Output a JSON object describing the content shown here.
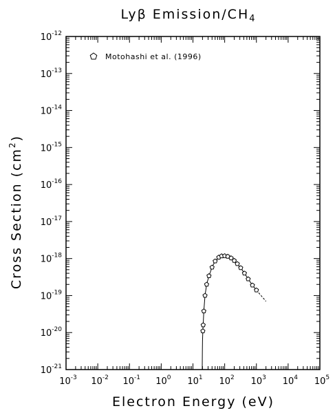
{
  "chart_data": {
    "type": "scatter",
    "title_main": "Lyβ Emission/CH",
    "title_sub": "4",
    "xlabel": "Electron Energy (eV)",
    "ylabel_main": "Cross Section (cm",
    "ylabel_sup": "2",
    "ylabel_end": ")",
    "x_scale": "log",
    "y_scale": "log",
    "xlim": [
      0.001,
      100000
    ],
    "ylim": [
      1e-21,
      1e-12
    ],
    "x_ticks": [
      {
        "base": "10",
        "exp": "-3"
      },
      {
        "base": "10",
        "exp": "-2"
      },
      {
        "base": "10",
        "exp": "-1"
      },
      {
        "base": "10",
        "exp": "0"
      },
      {
        "base": "10",
        "exp": "1"
      },
      {
        "base": "10",
        "exp": "2"
      },
      {
        "base": "10",
        "exp": "3"
      },
      {
        "base": "10",
        "exp": "4"
      },
      {
        "base": "10",
        "exp": "5"
      }
    ],
    "y_ticks": [
      {
        "base": "10",
        "exp": "-21"
      },
      {
        "base": "10",
        "exp": "-20"
      },
      {
        "base": "10",
        "exp": "-19"
      },
      {
        "base": "10",
        "exp": "-18"
      },
      {
        "base": "10",
        "exp": "-17"
      },
      {
        "base": "10",
        "exp": "-16"
      },
      {
        "base": "10",
        "exp": "-15"
      },
      {
        "base": "10",
        "exp": "-14"
      },
      {
        "base": "10",
        "exp": "-13"
      },
      {
        "base": "10",
        "exp": "-12"
      }
    ],
    "legend_placement": "top-left",
    "grid": false,
    "series": [
      {
        "name": "Motohashi et al. (1996)",
        "marker": "pentagon-open",
        "points": [
          [
            20.5,
            1.1e-20
          ],
          [
            21,
            1.6e-20
          ],
          [
            22,
            3.8e-20
          ],
          [
            24,
            1e-19
          ],
          [
            27,
            2e-19
          ],
          [
            32,
            3.4e-19
          ],
          [
            40,
            5.8e-19
          ],
          [
            50,
            8.5e-19
          ],
          [
            65,
            1.08e-18
          ],
          [
            80,
            1.17e-18
          ],
          [
            100,
            1.18e-18
          ],
          [
            125,
            1.14e-18
          ],
          [
            160,
            1.03e-18
          ],
          [
            200,
            8.8e-19
          ],
          [
            250,
            7.2e-19
          ],
          [
            320,
            5.6e-19
          ],
          [
            420,
            4e-19
          ],
          [
            550,
            2.8e-19
          ],
          [
            750,
            1.9e-19
          ],
          [
            1000,
            1.4e-19
          ]
        ]
      }
    ],
    "fit_curve": [
      [
        19.6,
        1e-21
      ],
      [
        19.8,
        3e-21
      ],
      [
        20.0,
        6e-21
      ],
      [
        20.5,
        1.1e-20
      ],
      [
        21,
        1.6e-20
      ],
      [
        22,
        3.8e-20
      ],
      [
        24,
        1e-19
      ],
      [
        27,
        2e-19
      ],
      [
        32,
        3.4e-19
      ],
      [
        40,
        5.8e-19
      ],
      [
        50,
        8.5e-19
      ],
      [
        65,
        1.08e-18
      ],
      [
        80,
        1.17e-18
      ],
      [
        100,
        1.18e-18
      ],
      [
        125,
        1.14e-18
      ],
      [
        160,
        1.03e-18
      ],
      [
        200,
        8.8e-19
      ],
      [
        250,
        7.2e-19
      ],
      [
        320,
        5.6e-19
      ],
      [
        420,
        4e-19
      ],
      [
        550,
        2.8e-19
      ],
      [
        750,
        1.9e-19
      ],
      [
        1000,
        1.4e-19
      ]
    ],
    "fit_extension": [
      [
        1000,
        1.4e-19
      ],
      [
        1400,
        1e-19
      ],
      [
        2000,
        7e-20
      ]
    ]
  }
}
